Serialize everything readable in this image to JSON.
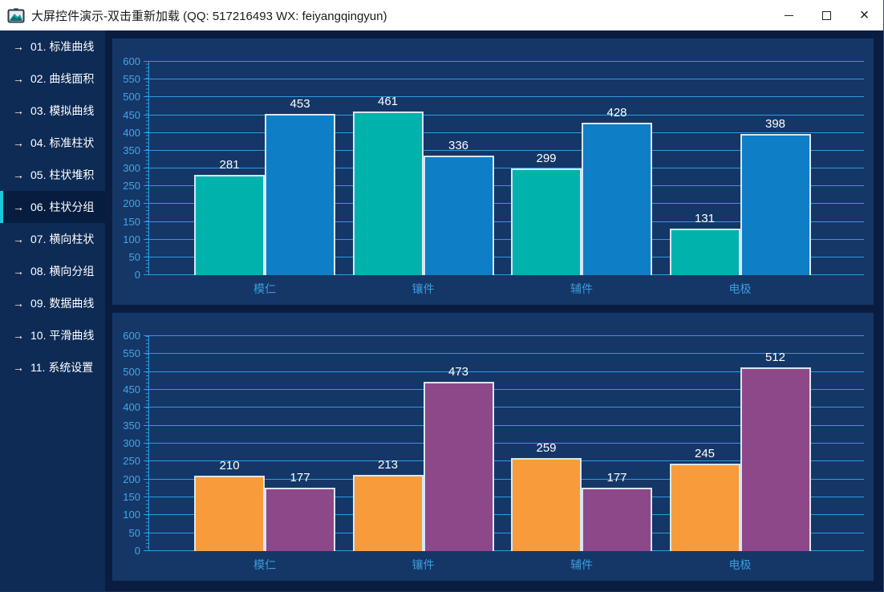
{
  "window": {
    "title": "大屏控件演示-双击重新加载 (QQ: 517216493  WX: feiyangqingyun)",
    "controls": [
      {
        "name": "minimize",
        "glyph": "–"
      },
      {
        "name": "maximize",
        "glyph": "□"
      },
      {
        "name": "close",
        "glyph": "×"
      }
    ]
  },
  "sidebar": {
    "arrow_glyph": "→",
    "items": [
      {
        "label": "01. 标准曲线",
        "active": false
      },
      {
        "label": "02. 曲线面积",
        "active": false
      },
      {
        "label": "03. 模拟曲线",
        "active": false
      },
      {
        "label": "04. 标准柱状",
        "active": false
      },
      {
        "label": "05. 柱状堆积",
        "active": false
      },
      {
        "label": "06. 柱状分组",
        "active": true
      },
      {
        "label": "07. 横向柱状",
        "active": false
      },
      {
        "label": "08. 横向分组",
        "active": false
      },
      {
        "label": "09. 数据曲线",
        "active": false
      },
      {
        "label": "10. 平滑曲线",
        "active": false
      },
      {
        "label": "11. 系统设置",
        "active": false
      }
    ]
  },
  "chart_data": [
    {
      "type": "bar",
      "title": "",
      "categories": [
        "模仁",
        "镶件",
        "辅件",
        "电极"
      ],
      "series": [
        {
          "name": "series-1",
          "color": "#00B2AC",
          "values": [
            281,
            461,
            299,
            131
          ]
        },
        {
          "name": "series-2",
          "color": "#0E7EC6",
          "values": [
            453,
            336,
            428,
            398
          ]
        }
      ],
      "xlabel": "",
      "ylabel": "",
      "ylim": [
        0,
        600
      ],
      "yticks": [
        0,
        50,
        100,
        150,
        200,
        250,
        300,
        350,
        400,
        450,
        500,
        550,
        600
      ],
      "grid": true,
      "legend": "none"
    },
    {
      "type": "bar",
      "title": "",
      "categories": [
        "模仁",
        "镶件",
        "辅件",
        "电极"
      ],
      "series": [
        {
          "name": "series-1",
          "color": "#F89C3B",
          "values": [
            210,
            213,
            259,
            245
          ]
        },
        {
          "name": "series-2",
          "color": "#8C4889",
          "values": [
            177,
            473,
            177,
            512
          ]
        }
      ],
      "xlabel": "",
      "ylabel": "",
      "ylim": [
        0,
        600
      ],
      "yticks": [
        0,
        50,
        100,
        150,
        200,
        250,
        300,
        350,
        400,
        450,
        500,
        550,
        600
      ],
      "grid": true,
      "legend": "none"
    }
  ],
  "theme": {
    "titlebar_bg": "#FFFFFF",
    "window_bg": "#0A1D40",
    "sidebar_bg": "#0D2B55",
    "sidebar_active_bg": "#061D40",
    "sidebar_accent": "#18C9D8",
    "panel_bg": "#143767",
    "grid_color": "#2E9BE3",
    "tick_label_color": "#47A4E8",
    "category_label_color": "#3E9BDC",
    "bar_border": "#D8E6F4",
    "value_label": "#FFFFFF"
  }
}
